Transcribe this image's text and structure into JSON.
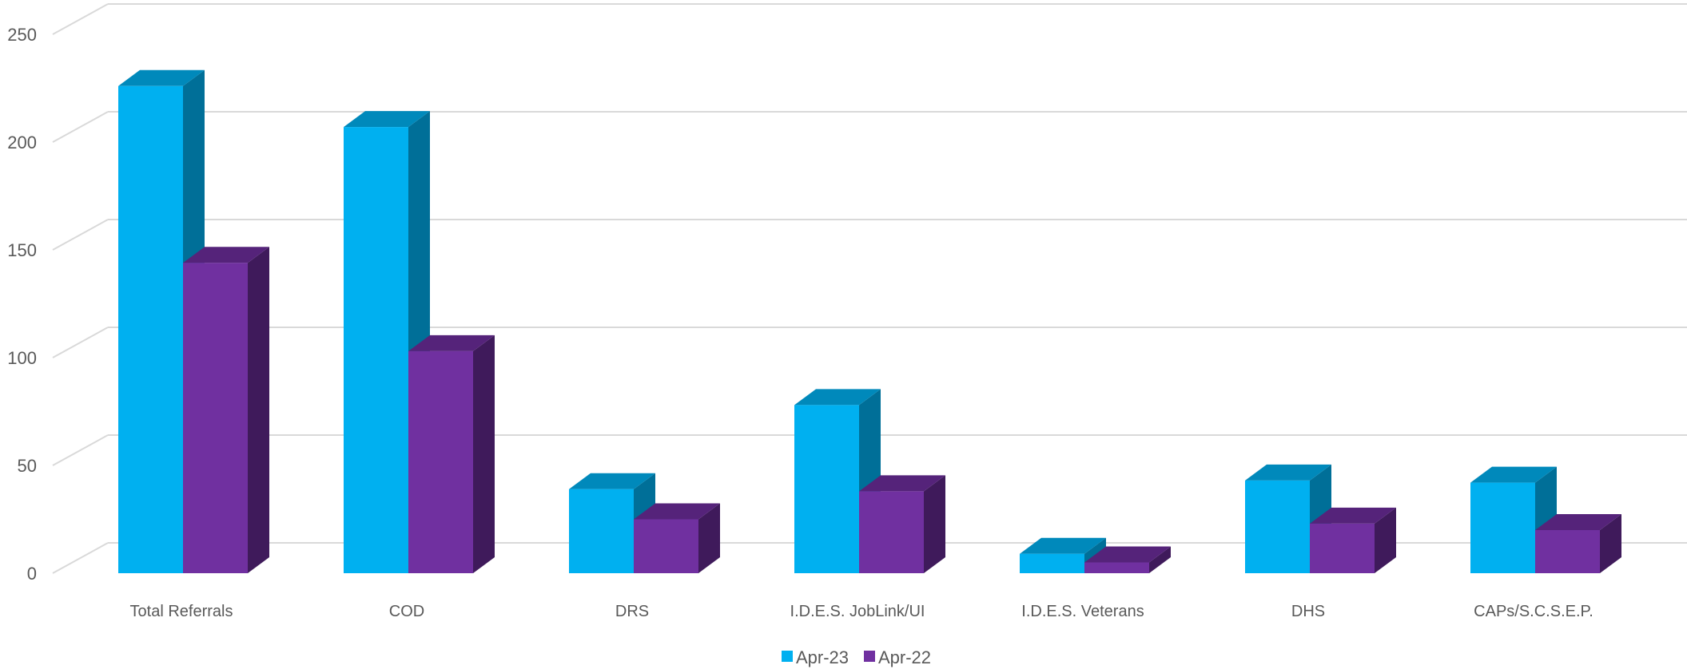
{
  "chart_data": {
    "type": "bar",
    "variant": "3d-clustered-column",
    "title": "",
    "xlabel": "",
    "ylabel": "",
    "ylim": [
      0,
      250
    ],
    "yticks": [
      0,
      50,
      100,
      150,
      200,
      250
    ],
    "categories": [
      "Total Referrals",
      "COD",
      "DRS",
      "I.D.E.S. JobLink/UI",
      "I.D.E.S. Veterans",
      "DHS",
      "CAPs/S.C.S.E.P."
    ],
    "series": [
      {
        "name": "Apr-23",
        "values": [
          226,
          207,
          39,
          78,
          9,
          43,
          42
        ]
      },
      {
        "name": "Apr-22",
        "values": [
          144,
          103,
          25,
          38,
          5,
          23,
          20
        ]
      }
    ],
    "grid": true,
    "legend": "bottom",
    "colors": {
      "Apr-23": {
        "front": "#00b0f0",
        "top": "#0089bb",
        "side": "#006f98"
      },
      "Apr-22": {
        "front": "#7030a0",
        "top": "#55237a",
        "side": "#3f1a5b"
      },
      "grid": "#d9d9d9",
      "text": "#595959"
    }
  }
}
